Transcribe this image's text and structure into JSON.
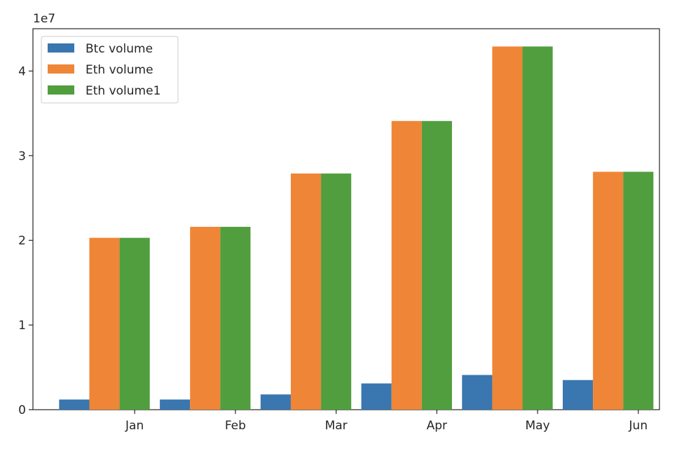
{
  "chart_data": {
    "type": "bar",
    "title": "",
    "xlabel": "",
    "ylabel": "",
    "offset_label": "1e7",
    "categories": [
      "Jan",
      "Feb",
      "Mar",
      "Apr",
      "May",
      "Jun"
    ],
    "series": [
      {
        "name": "Btc volume",
        "color": "#3a76af",
        "values": [
          1200000,
          1200000,
          1800000,
          3100000,
          4100000,
          3500000
        ]
      },
      {
        "name": "Eth volume",
        "color": "#ef8536",
        "values": [
          20300000,
          21600000,
          27900000,
          34100000,
          42900000,
          28100000
        ]
      },
      {
        "name": "Eth volume1",
        "color": "#519e3e",
        "values": [
          20300000,
          21600000,
          27900000,
          34100000,
          42900000,
          28100000
        ]
      }
    ],
    "ylim": [
      0,
      45000000
    ],
    "yticks": [
      {
        "value": 0,
        "label": "0"
      },
      {
        "value": 10000000,
        "label": "1"
      },
      {
        "value": 20000000,
        "label": "2"
      },
      {
        "value": 30000000,
        "label": "3"
      },
      {
        "value": 40000000,
        "label": "4"
      }
    ],
    "grid": false,
    "legend": "top-left"
  }
}
